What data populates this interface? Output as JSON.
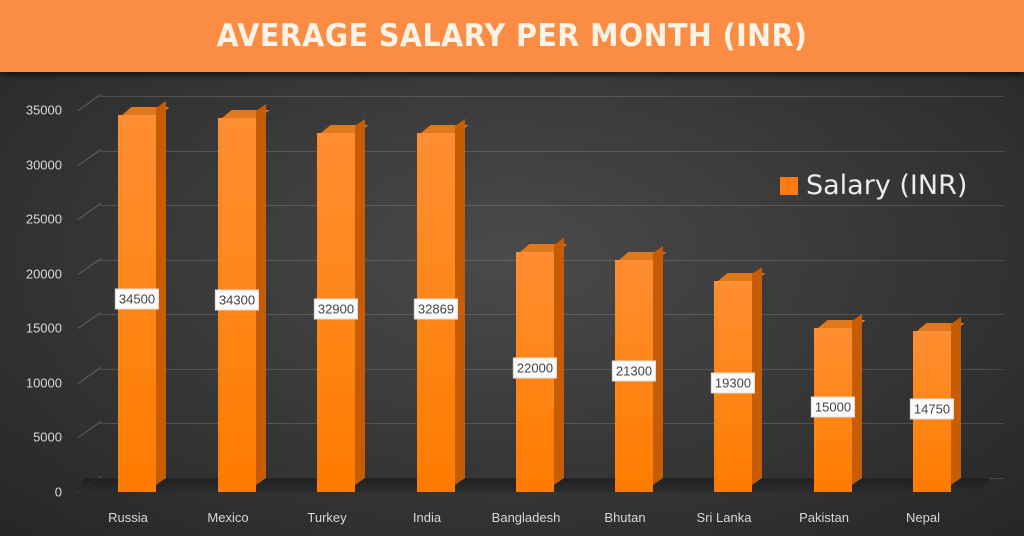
{
  "header": {
    "title": "AVERAGE SALARY PER MONTH (INR)"
  },
  "legend": {
    "label": "Salary (INR)",
    "color": "#ff7a10"
  },
  "y_ticks": [
    "35000",
    "30000",
    "25000",
    "20000",
    "15000",
    "10000",
    "5000",
    "0"
  ],
  "bars": [
    {
      "category": "Russia",
      "value": "34500"
    },
    {
      "category": "Mexico",
      "value": "34300"
    },
    {
      "category": "Turkey",
      "value": "32900"
    },
    {
      "category": "India",
      "value": "32869"
    },
    {
      "category": "Bangladesh",
      "value": "22000"
    },
    {
      "category": "Bhutan",
      "value": "21300"
    },
    {
      "category": "Sri Lanka",
      "value": "19300"
    },
    {
      "category": "Pakistan",
      "value": "15000"
    },
    {
      "category": "Nepal",
      "value": "14750"
    }
  ],
  "colors": {
    "header_bg": "#fb8c44",
    "bar": "#ff8412",
    "bar_side": "#c65d05",
    "background": "#2f2f2f"
  },
  "chart_data": {
    "type": "bar",
    "title": "AVERAGE SALARY PER MONTH (INR)",
    "categories": [
      "Russia",
      "Mexico",
      "Turkey",
      "India",
      "Bangladesh",
      "Bhutan",
      "Sri Lanka",
      "Pakistan",
      "Nepal"
    ],
    "series": [
      {
        "name": "Salary (INR)",
        "values": [
          34500,
          34300,
          32900,
          32869,
          22000,
          21300,
          19300,
          15000,
          14750
        ]
      }
    ],
    "xlabel": "",
    "ylabel": "",
    "ylim": [
      0,
      35000
    ],
    "yticks": [
      0,
      5000,
      10000,
      15000,
      20000,
      25000,
      30000,
      35000
    ],
    "grid": true,
    "legend_position": "right",
    "style": "3d-column"
  }
}
